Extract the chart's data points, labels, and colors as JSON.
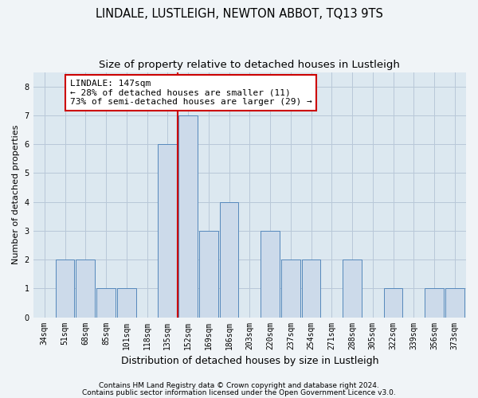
{
  "title": "LINDALE, LUSTLEIGH, NEWTON ABBOT, TQ13 9TS",
  "subtitle": "Size of property relative to detached houses in Lustleigh",
  "xlabel": "Distribution of detached houses by size in Lustleigh",
  "ylabel": "Number of detached properties",
  "categories": [
    "34sqm",
    "51sqm",
    "68sqm",
    "85sqm",
    "101sqm",
    "118sqm",
    "135sqm",
    "152sqm",
    "169sqm",
    "186sqm",
    "203sqm",
    "220sqm",
    "237sqm",
    "254sqm",
    "271sqm",
    "288sqm",
    "305sqm",
    "322sqm",
    "339sqm",
    "356sqm",
    "373sqm"
  ],
  "values": [
    0,
    2,
    2,
    1,
    1,
    0,
    6,
    7,
    3,
    4,
    0,
    3,
    2,
    2,
    0,
    2,
    0,
    1,
    0,
    1,
    1
  ],
  "bar_color": "#ccdaea",
  "bar_edge_color": "#5588bb",
  "vline_x_index": 6.5,
  "vline_color": "#cc0000",
  "annotation_line1": "LINDALE: 147sqm",
  "annotation_line2": "← 28% of detached houses are smaller (11)",
  "annotation_line3": "73% of semi-detached houses are larger (29) →",
  "ylim": [
    0,
    8.5
  ],
  "yticks": [
    0,
    1,
    2,
    3,
    4,
    5,
    6,
    7,
    8
  ],
  "grid_color": "#b8c8d8",
  "bg_color": "#dce8f0",
  "fig_bg_color": "#f0f4f7",
  "footer_line1": "Contains HM Land Registry data © Crown copyright and database right 2024.",
  "footer_line2": "Contains public sector information licensed under the Open Government Licence v3.0.",
  "title_fontsize": 10.5,
  "subtitle_fontsize": 9.5,
  "xlabel_fontsize": 9,
  "ylabel_fontsize": 8,
  "tick_fontsize": 7,
  "annotation_fontsize": 8,
  "footer_fontsize": 6.5
}
